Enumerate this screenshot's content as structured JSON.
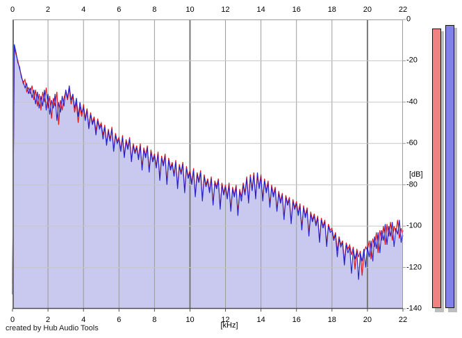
{
  "window": {
    "credit": "created by Hub Audio Tools"
  },
  "chart_data": {
    "type": "line",
    "title": "",
    "xlabel": "[kHz]",
    "ylabel": "[dB]",
    "x_axis": {
      "min": 0,
      "max": 22,
      "ticks": [
        0,
        2,
        4,
        6,
        8,
        10,
        12,
        14,
        16,
        18,
        20,
        22
      ],
      "major_ticks": [
        10,
        20
      ],
      "unit_label": "[kHz]"
    },
    "y_axis": {
      "min": -140,
      "max": 0,
      "ticks": [
        0,
        -20,
        -40,
        -60,
        -80,
        -100,
        -120,
        -140
      ],
      "unit_label": "[dB]"
    },
    "grid": {
      "vertical_color": "#9a9a9a",
      "vertical_major_color": "#787878",
      "horizontal_color": "#c6c6c6",
      "frame_color": "#9a9a9a",
      "frame_left_color": "#6b6b6b",
      "frame_bottom_color": "#4d4d4d"
    },
    "x_step_khz": 0.1,
    "series": [
      {
        "name": "spectrum-left-channel",
        "color": "#e01010",
        "values": [
          -128,
          -14,
          -17,
          -20,
          -24,
          -27,
          -31,
          -29,
          -35,
          -33,
          -36,
          -32,
          -39,
          -34,
          -42,
          -36,
          -44,
          -35,
          -40,
          -33,
          -43,
          -37,
          -48,
          -38,
          -42,
          -35,
          -51,
          -39,
          -44,
          -38,
          -35,
          -39,
          -33,
          -41,
          -37,
          -45,
          -40,
          -50,
          -42,
          -47,
          -41,
          -48,
          -43,
          -52,
          -45,
          -50,
          -47,
          -54,
          -48,
          -52,
          -50,
          -56,
          -51,
          -60,
          -53,
          -58,
          -52,
          -63,
          -55,
          -59,
          -57,
          -63,
          -56,
          -66,
          -58,
          -62,
          -57,
          -68,
          -60,
          -64,
          -61,
          -67,
          -60,
          -72,
          -62,
          -66,
          -61,
          -73,
          -63,
          -68,
          -65,
          -71,
          -64,
          -77,
          -66,
          -70,
          -65,
          -79,
          -67,
          -72,
          -69,
          -75,
          -68,
          -81,
          -70,
          -74,
          -69,
          -83,
          -71,
          -76,
          -73,
          -79,
          -72,
          -85,
          -74,
          -78,
          -73,
          -87,
          -75,
          -80,
          -77,
          -83,
          -76,
          -89,
          -78,
          -81,
          -77,
          -91,
          -79,
          -84,
          -80,
          -86,
          -79,
          -92,
          -81,
          -85,
          -80,
          -94,
          -82,
          -86,
          -79,
          -84,
          -76,
          -88,
          -75,
          -82,
          -74,
          -86,
          -76,
          -81,
          -75,
          -87,
          -77,
          -83,
          -78,
          -90,
          -80,
          -85,
          -81,
          -92,
          -83,
          -88,
          -84,
          -96,
          -85,
          -89,
          -86,
          -98,
          -87,
          -91,
          -88,
          -94,
          -89,
          -101,
          -90,
          -95,
          -91,
          -104,
          -93,
          -97,
          -94,
          -99,
          -95,
          -107,
          -96,
          -100,
          -97,
          -109,
          -99,
          -102,
          -101,
          -106,
          -103,
          -112,
          -105,
          -109,
          -107,
          -117,
          -108,
          -111,
          -109,
          -114,
          -110,
          -121,
          -111,
          -115,
          -112,
          -124,
          -113,
          -110,
          -112,
          -107,
          -116,
          -106,
          -110,
          -103,
          -113,
          -102,
          -107,
          -100,
          -109,
          -99,
          -105,
          -98,
          -107,
          -100,
          -103,
          -97,
          -106,
          -101,
          -105
        ]
      },
      {
        "name": "spectrum-right-channel",
        "color": "#2222cc",
        "fill_color": "#c9c8ee",
        "values": [
          -133,
          -12,
          -16,
          -21,
          -23,
          -28,
          -30,
          -33,
          -31,
          -36,
          -33,
          -38,
          -34,
          -41,
          -35,
          -43,
          -37,
          -42,
          -34,
          -44,
          -36,
          -46,
          -39,
          -43,
          -36,
          -49,
          -40,
          -45,
          -37,
          -42,
          -34,
          -38,
          -32,
          -39,
          -36,
          -43,
          -38,
          -47,
          -40,
          -45,
          -43,
          -49,
          -44,
          -53,
          -46,
          -51,
          -48,
          -56,
          -49,
          -53,
          -51,
          -58,
          -52,
          -61,
          -54,
          -59,
          -53,
          -64,
          -56,
          -60,
          -58,
          -64,
          -57,
          -67,
          -59,
          -63,
          -58,
          -69,
          -61,
          -65,
          -62,
          -68,
          -61,
          -73,
          -63,
          -67,
          -62,
          -74,
          -64,
          -69,
          -66,
          -72,
          -65,
          -78,
          -67,
          -71,
          -66,
          -80,
          -68,
          -73,
          -70,
          -76,
          -69,
          -82,
          -71,
          -75,
          -70,
          -84,
          -72,
          -77,
          -74,
          -80,
          -73,
          -86,
          -75,
          -79,
          -74,
          -88,
          -76,
          -81,
          -78,
          -84,
          -77,
          -90,
          -79,
          -82,
          -78,
          -92,
          -80,
          -85,
          -81,
          -87,
          -80,
          -93,
          -82,
          -86,
          -81,
          -95,
          -83,
          -88,
          -80,
          -85,
          -77,
          -89,
          -76,
          -83,
          -75,
          -87,
          -74,
          -82,
          -76,
          -88,
          -78,
          -84,
          -79,
          -91,
          -81,
          -86,
          -82,
          -93,
          -84,
          -89,
          -85,
          -97,
          -86,
          -90,
          -87,
          -99,
          -88,
          -92,
          -89,
          -95,
          -90,
          -102,
          -91,
          -96,
          -92,
          -105,
          -94,
          -98,
          -95,
          -100,
          -96,
          -108,
          -97,
          -101,
          -98,
          -110,
          -100,
          -103,
          -102,
          -107,
          -104,
          -115,
          -106,
          -110,
          -108,
          -119,
          -109,
          -113,
          -110,
          -123,
          -111,
          -116,
          -112,
          -126,
          -113,
          -117,
          -111,
          -120,
          -110,
          -115,
          -107,
          -117,
          -105,
          -111,
          -103,
          -113,
          -102,
          -107,
          -99,
          -109,
          -100,
          -105,
          -98,
          -110,
          -101,
          -104,
          -97,
          -108,
          -102
        ]
      }
    ],
    "level_meters": [
      {
        "name": "level-meter-left",
        "color": "#f18282",
        "border_color": "#151515",
        "shadow_color": "#bdbdbd",
        "peak_db": -4.3
      },
      {
        "name": "level-meter-right",
        "color": "#8181e8",
        "border_color": "#151515",
        "shadow_color": "#bdbdbd",
        "peak_db": -2.8
      }
    ]
  }
}
